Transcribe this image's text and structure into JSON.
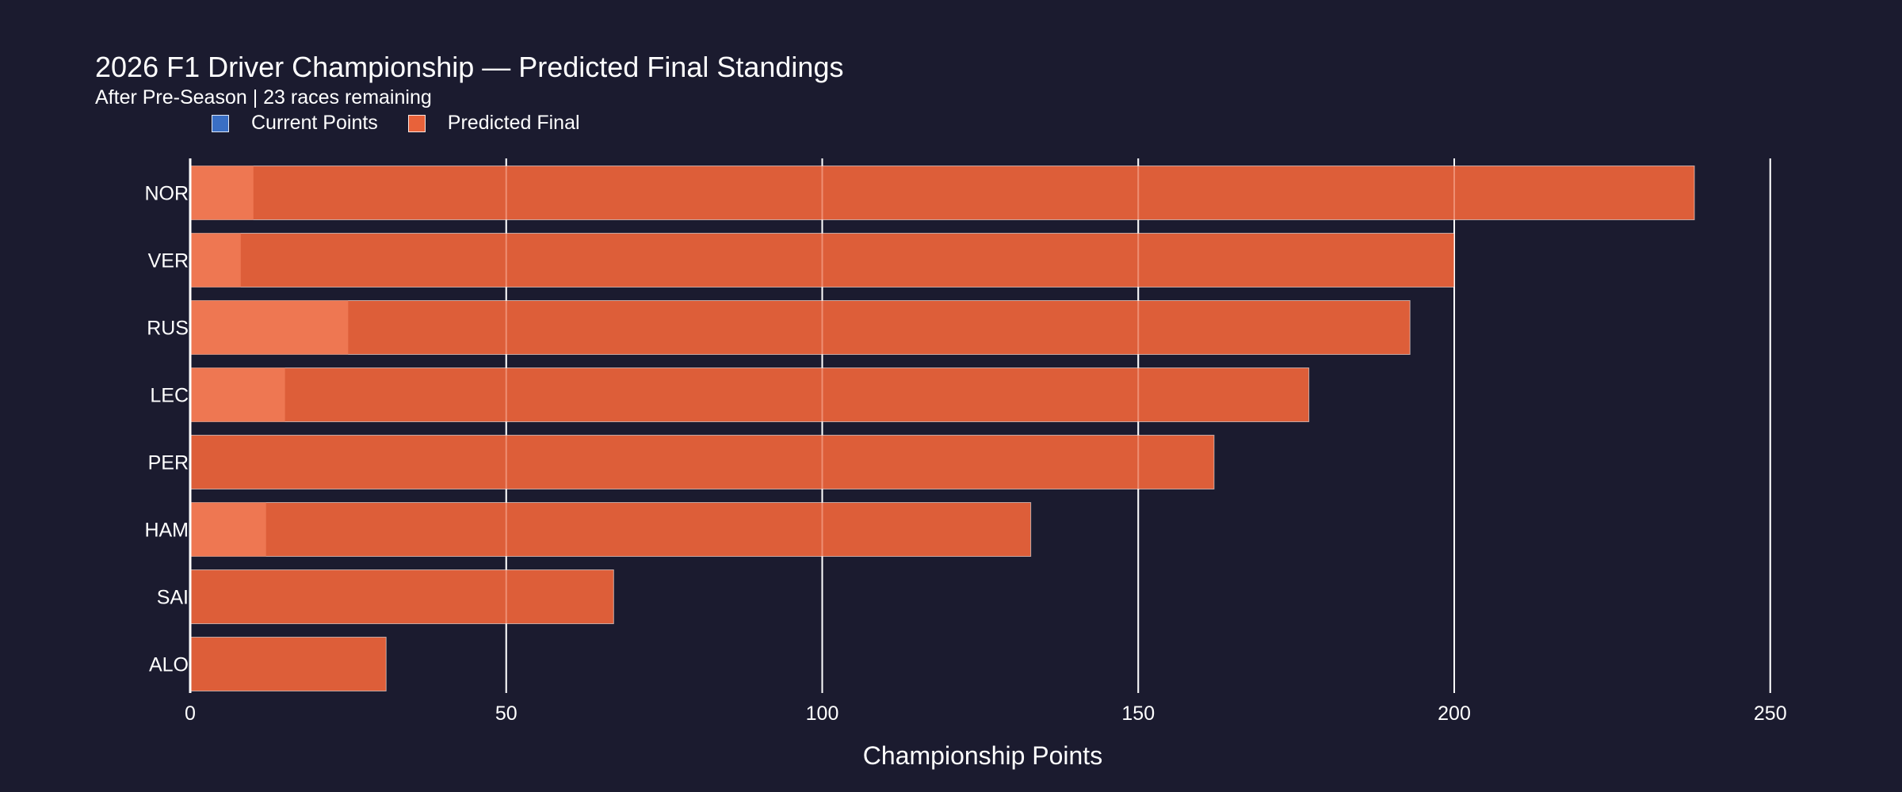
{
  "chart_data": {
    "type": "bar",
    "orientation": "horizontal",
    "barmode": "overlay",
    "title": "2026 F1 Driver Championship — Predicted Final Standings",
    "subtitle": "After Pre-Season | 23 races remaining",
    "xlabel": "Championship Points",
    "ylabel": "",
    "xlim": [
      0,
      260
    ],
    "x_ticks": [
      0,
      50,
      100,
      150,
      200,
      250
    ],
    "grid": true,
    "legend_placement": "top-left",
    "categories": [
      "NOR",
      "VER",
      "RUS",
      "LEC",
      "PER",
      "HAM",
      "SAI",
      "ALO"
    ],
    "series": [
      {
        "name": "Current Points",
        "color": "#3a6fc4",
        "values": [
          10,
          8,
          25,
          15,
          0,
          12,
          0,
          0
        ]
      },
      {
        "name": "Predicted Final",
        "color": "#e8623a",
        "values": [
          238,
          200,
          193,
          177,
          162,
          133,
          67,
          31
        ]
      }
    ]
  }
}
